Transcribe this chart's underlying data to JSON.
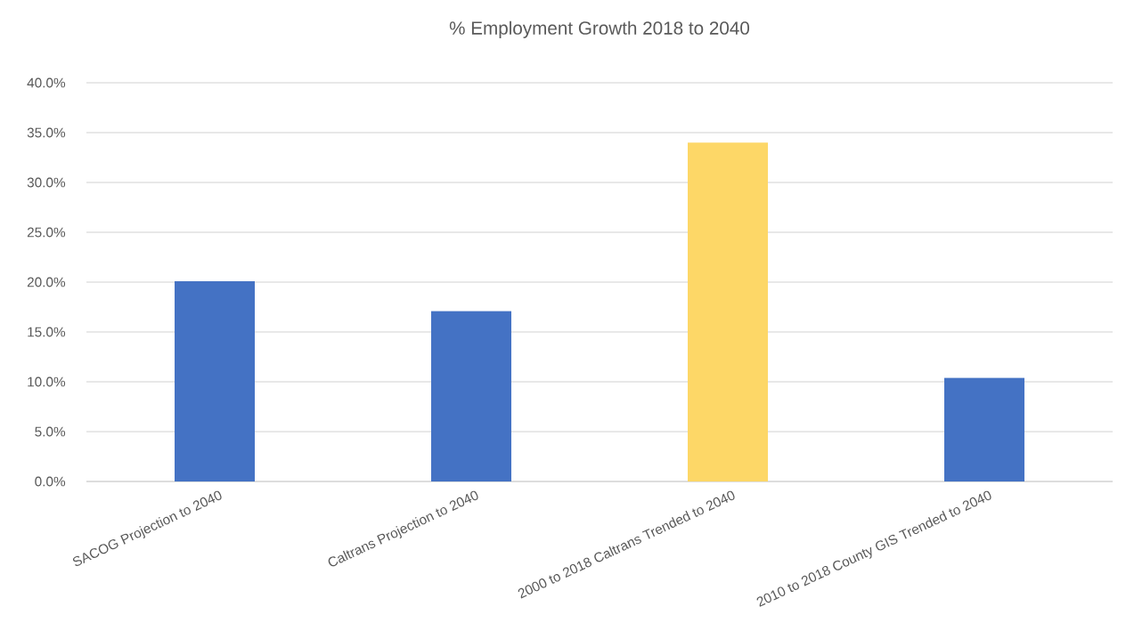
{
  "chart_data": {
    "type": "bar",
    "title": "% Employment Growth 2018  to 2040",
    "categories": [
      "SACOG Projection to 2040",
      "Caltrans Projection to 2040",
      "2000 to 2018 Caltrans Trended to 2040",
      "2010 to 2018 County GIS Trended to 2040"
    ],
    "values": [
      20.1,
      17.1,
      34.0,
      10.4
    ],
    "colors": [
      "#4472c4",
      "#4472c4",
      "#fdd767",
      "#4472c4"
    ],
    "ylim": [
      0,
      40
    ],
    "yticks": [
      {
        "value": 0,
        "label": "0.0%"
      },
      {
        "value": 5,
        "label": "5.0%"
      },
      {
        "value": 10,
        "label": "10.0%"
      },
      {
        "value": 15,
        "label": "15.0%"
      },
      {
        "value": 20,
        "label": "20.0%"
      },
      {
        "value": 25,
        "label": "25.0%"
      },
      {
        "value": 30,
        "label": "30.0%"
      },
      {
        "value": 35,
        "label": "35.0%"
      },
      {
        "value": 40,
        "label": "40.0%"
      }
    ],
    "grid": "y"
  }
}
